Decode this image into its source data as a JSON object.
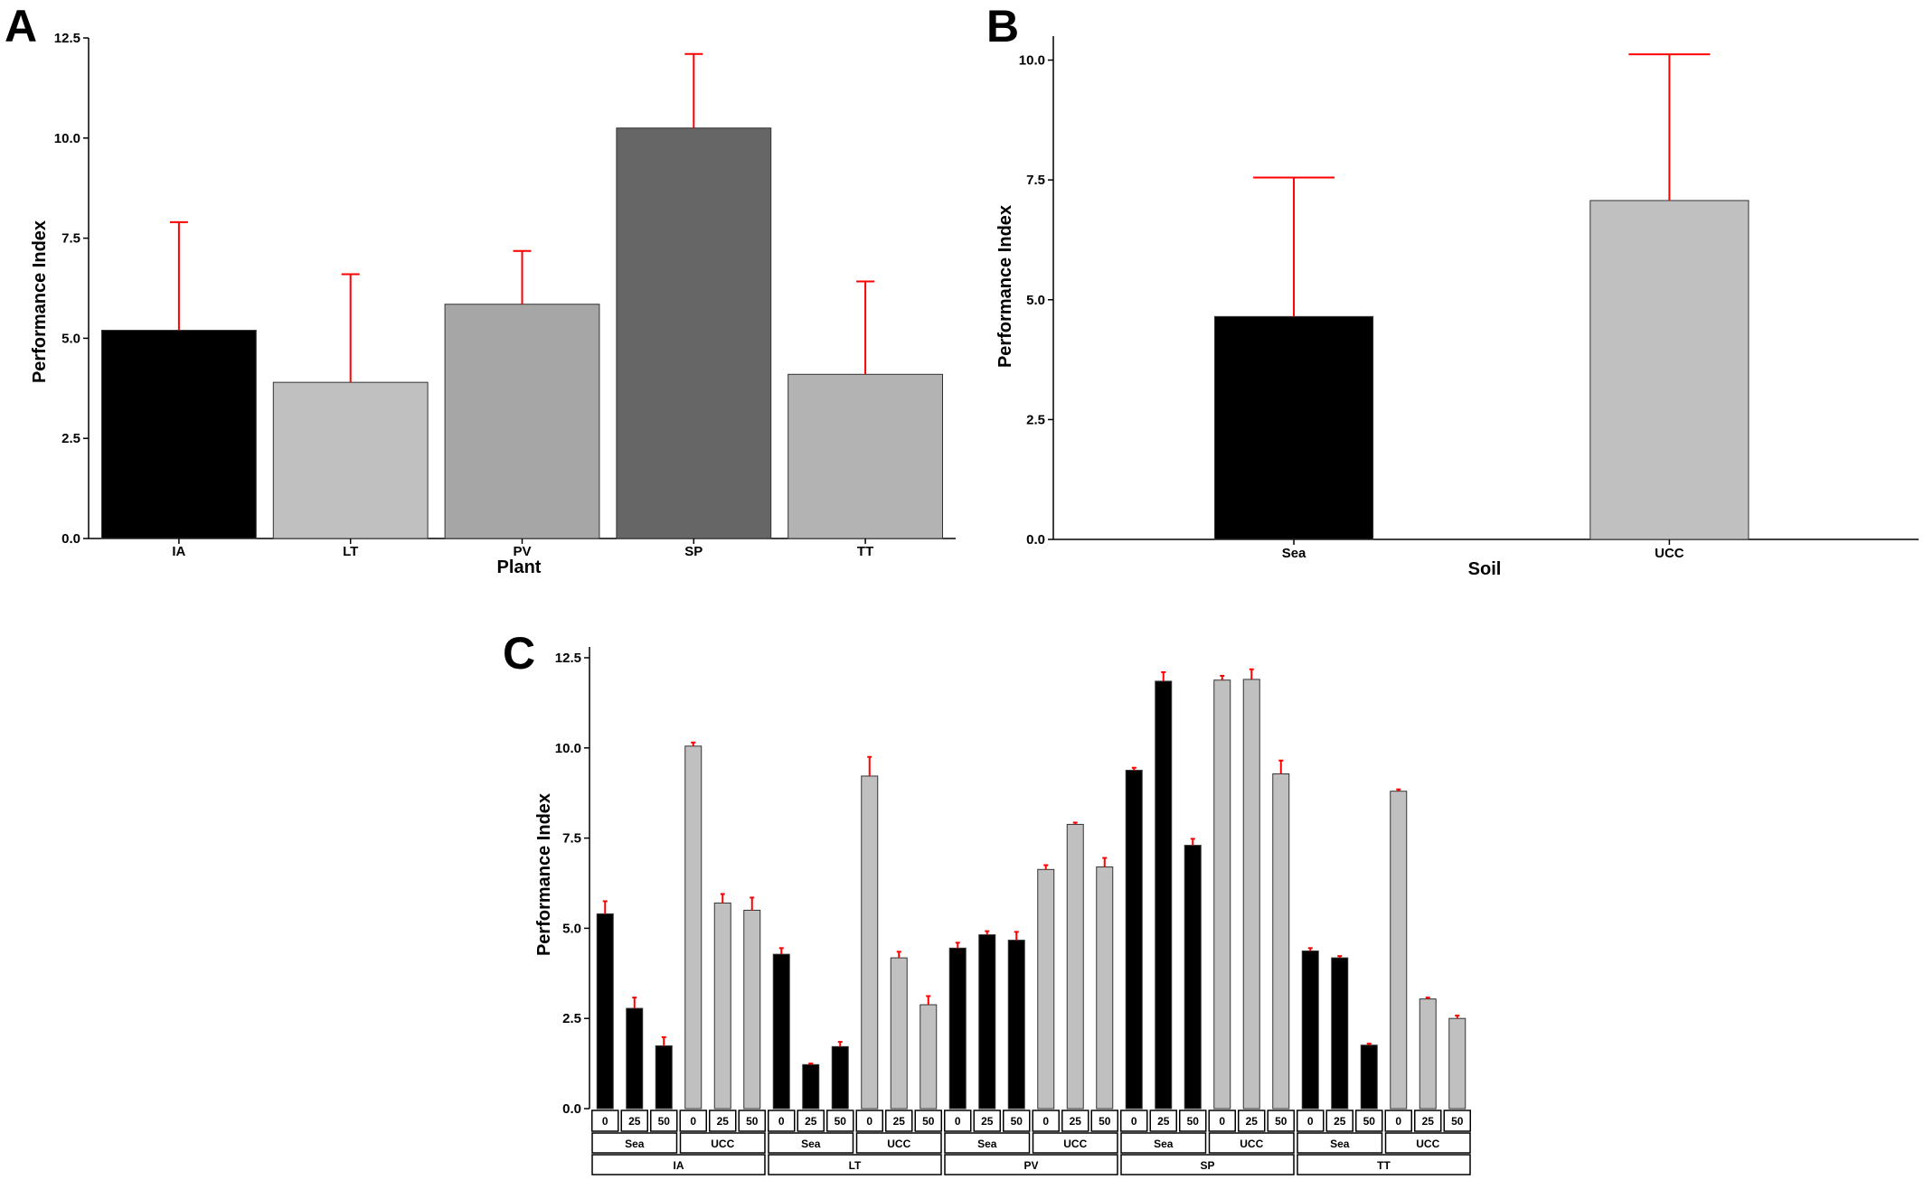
{
  "colors": {
    "err": "#ff0000",
    "axis": "#000000",
    "bar_edge": "#333333"
  },
  "chart_data": [
    {
      "panel": "A",
      "type": "bar",
      "xlabel": "Plant",
      "ylabel": "Performance Index",
      "ylim": [
        0,
        12.5
      ],
      "yticks": [
        "0.0",
        "2.5",
        "5.0",
        "7.5",
        "10.0",
        "12.5"
      ],
      "categories": [
        "IA",
        "LT",
        "PV",
        "SP",
        "TT"
      ],
      "values": [
        5.2,
        3.9,
        5.85,
        10.25,
        4.1
      ],
      "error_upper": [
        7.9,
        6.6,
        7.18,
        12.1,
        6.42
      ],
      "bar_colors": [
        "#000000",
        "#c0c0c0",
        "#a6a6a6",
        "#666666",
        "#b3b3b3"
      ]
    },
    {
      "panel": "B",
      "type": "bar",
      "xlabel": "Soil",
      "ylabel": "Performance Index",
      "ylim": [
        0,
        10.5
      ],
      "yticks": [
        "0.0",
        "2.5",
        "5.0",
        "7.5",
        "10.0"
      ],
      "categories": [
        "Sea",
        "UCC"
      ],
      "values": [
        4.65,
        7.07
      ],
      "error_upper": [
        7.55,
        10.12
      ],
      "bar_colors": [
        "#000000",
        "#c0c0c0"
      ]
    },
    {
      "panel": "C",
      "type": "bar",
      "xlabel": "",
      "ylabel": "Performance Index",
      "ylim": [
        0,
        12.8
      ],
      "yticks": [
        "0.0",
        "2.5",
        "5.0",
        "7.5",
        "10.0",
        "12.5"
      ],
      "groups": [
        {
          "plant": "IA",
          "soils": [
            {
              "soil": "Sea",
              "levels": [
                "0",
                "25",
                "50"
              ],
              "values": [
                5.4,
                2.78,
                1.74
              ],
              "error_upper": [
                5.75,
                3.08,
                1.98
              ]
            },
            {
              "soil": "UCC",
              "levels": [
                "0",
                "25",
                "50"
              ],
              "values": [
                10.05,
                5.7,
                5.5
              ],
              "error_upper": [
                10.15,
                5.95,
                5.85
              ]
            }
          ]
        },
        {
          "plant": "LT",
          "soils": [
            {
              "soil": "Sea",
              "levels": [
                "0",
                "25",
                "50"
              ],
              "values": [
                4.28,
                1.22,
                1.72
              ],
              "error_upper": [
                4.45,
                1.25,
                1.85
              ]
            },
            {
              "soil": "UCC",
              "levels": [
                "0",
                "25",
                "50"
              ],
              "values": [
                9.22,
                4.18,
                2.88
              ],
              "error_upper": [
                9.75,
                4.35,
                3.12
              ]
            }
          ]
        },
        {
          "plant": "PV",
          "soils": [
            {
              "soil": "Sea",
              "levels": [
                "0",
                "25",
                "50"
              ],
              "values": [
                4.45,
                4.82,
                4.67
              ],
              "error_upper": [
                4.6,
                4.92,
                4.9
              ]
            },
            {
              "soil": "UCC",
              "levels": [
                "0",
                "25",
                "50"
              ],
              "values": [
                6.63,
                7.88,
                6.7
              ],
              "error_upper": [
                6.75,
                7.93,
                6.95
              ]
            }
          ]
        },
        {
          "plant": "SP",
          "soils": [
            {
              "soil": "Sea",
              "levels": [
                "0",
                "25",
                "50"
              ],
              "values": [
                9.38,
                11.85,
                7.3
              ],
              "error_upper": [
                9.45,
                12.1,
                7.48
              ]
            },
            {
              "soil": "UCC",
              "levels": [
                "0",
                "25",
                "50"
              ],
              "values": [
                11.88,
                11.9,
                9.28
              ],
              "error_upper": [
                12.0,
                12.18,
                9.65
              ]
            }
          ]
        },
        {
          "plant": "TT",
          "soils": [
            {
              "soil": "Sea",
              "levels": [
                "0",
                "25",
                "50"
              ],
              "values": [
                4.37,
                4.18,
                1.76
              ],
              "error_upper": [
                4.45,
                4.23,
                1.8
              ]
            },
            {
              "soil": "UCC",
              "levels": [
                "0",
                "25",
                "50"
              ],
              "values": [
                8.8,
                3.04,
                2.5
              ],
              "error_upper": [
                8.85,
                3.08,
                2.58
              ]
            }
          ]
        }
      ],
      "soil_colors": {
        "Sea": "#000000",
        "UCC": "#c0c0c0"
      }
    }
  ]
}
